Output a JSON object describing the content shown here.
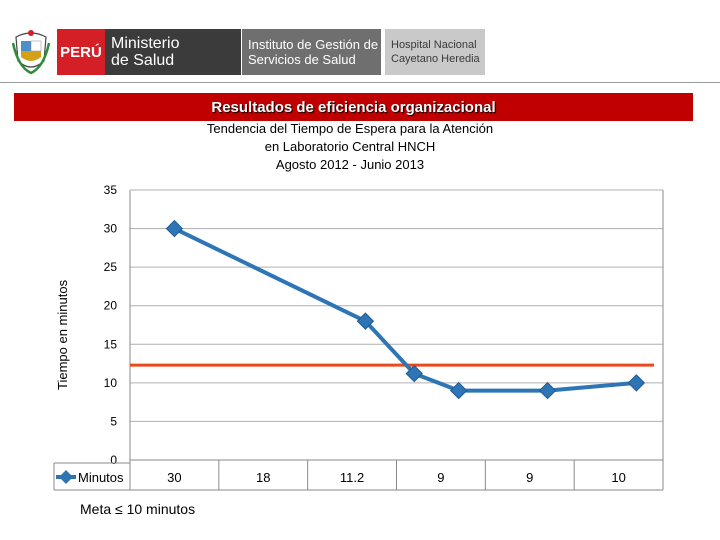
{
  "header": {
    "logo_peru": "PERÚ",
    "logo_ministerio_line1": "Ministerio",
    "logo_ministerio_line2": "de Salud",
    "logo_instituto_line1": "Instituto de Gestión de",
    "logo_instituto_line2": "Servicios de Salud",
    "logo_hospital_line1": "Hospital Nacional",
    "logo_hospital_line2": "Cayetano Heredia"
  },
  "banner": {
    "title": "Resultados de  eficiencia organizacional"
  },
  "footer": {
    "meta_text": "Meta  ≤ 10 minutos"
  },
  "colors": {
    "series": "#2e75b6",
    "goal_line": "#e8491d",
    "banner": "#c00000"
  },
  "chart_data": {
    "type": "line",
    "title_lines": [
      "Tendencia del Tiempo de Espera para la Atención",
      "en Laboratorio Central HNCH",
      "Agosto 2012 - Junio 2013"
    ],
    "ylabel": "Tiempo en minutos",
    "ylim": [
      0,
      35
    ],
    "y_ticks": [
      0,
      5,
      10,
      15,
      20,
      25,
      30,
      35
    ],
    "grid": true,
    "legend_placement": "bottom-left, inside data table",
    "series": [
      {
        "name": "Minutos",
        "points": [
          {
            "x": 0.0,
            "y": 30
          },
          {
            "x": 2.15,
            "y": 18
          },
          {
            "x": 2.7,
            "y": 11.2
          },
          {
            "x": 3.2,
            "y": 9
          },
          {
            "x": 4.2,
            "y": 9
          },
          {
            "x": 5.2,
            "y": 10
          }
        ]
      }
    ],
    "table_values": [
      "30",
      "18",
      "11.2",
      "9",
      "9",
      "10"
    ],
    "goal_line": {
      "y": 12.3
    }
  }
}
